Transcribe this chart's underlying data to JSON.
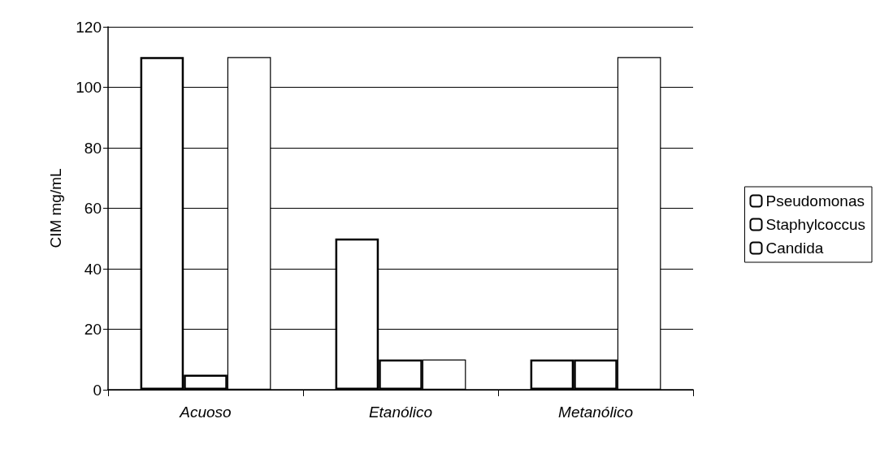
{
  "chart_data": {
    "type": "bar",
    "ylabel": "CIM mg/mL",
    "categories": [
      "Acuoso",
      "Etanólico",
      "Metanólico"
    ],
    "series": [
      {
        "name": "Pseudomonas",
        "color": "#ffffff",
        "values": [
          110,
          50,
          10
        ]
      },
      {
        "name": "Staphylcoccus",
        "color": "#ffffff",
        "values": [
          5,
          10,
          10
        ]
      },
      {
        "name": "Candida",
        "color": "#ffffff",
        "values": [
          110,
          10,
          110
        ]
      }
    ],
    "ylim": [
      0,
      120
    ],
    "yticks": [
      0,
      20,
      40,
      60,
      80,
      100,
      120
    ],
    "grid": "y",
    "legend": "right"
  }
}
